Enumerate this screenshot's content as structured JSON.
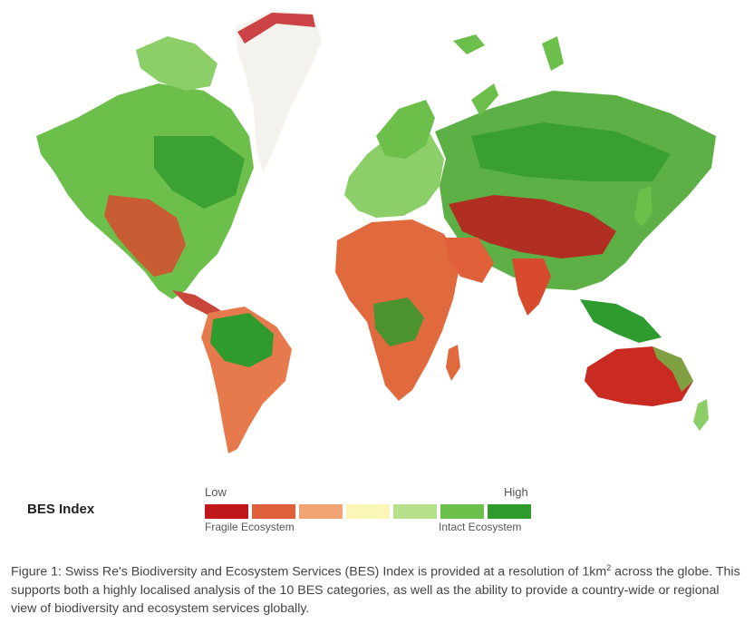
{
  "legend": {
    "title": "BES Index",
    "low_label": "Low",
    "high_label": "High",
    "fragile_label": "Fragile Ecosystem",
    "intact_label": "Intact Ecosystem",
    "colors": [
      "#c0171c",
      "#e0603a",
      "#f2a574",
      "#fcf5b8",
      "#b6e08a",
      "#6dbf4b",
      "#2f9a2d"
    ]
  },
  "caption": {
    "before_sup": "Figure 1: Swiss Re's Biodiversity and Ecosystem Services (BES) Index is provided at a resolution of 1km",
    "sup": "2",
    "after_sup": " across the globe. This supports both a highly localised analysis of the 10 BES categories, as well as the ability to provide a country-wide or regional view of biodiversity and ecosystem services globally."
  }
}
